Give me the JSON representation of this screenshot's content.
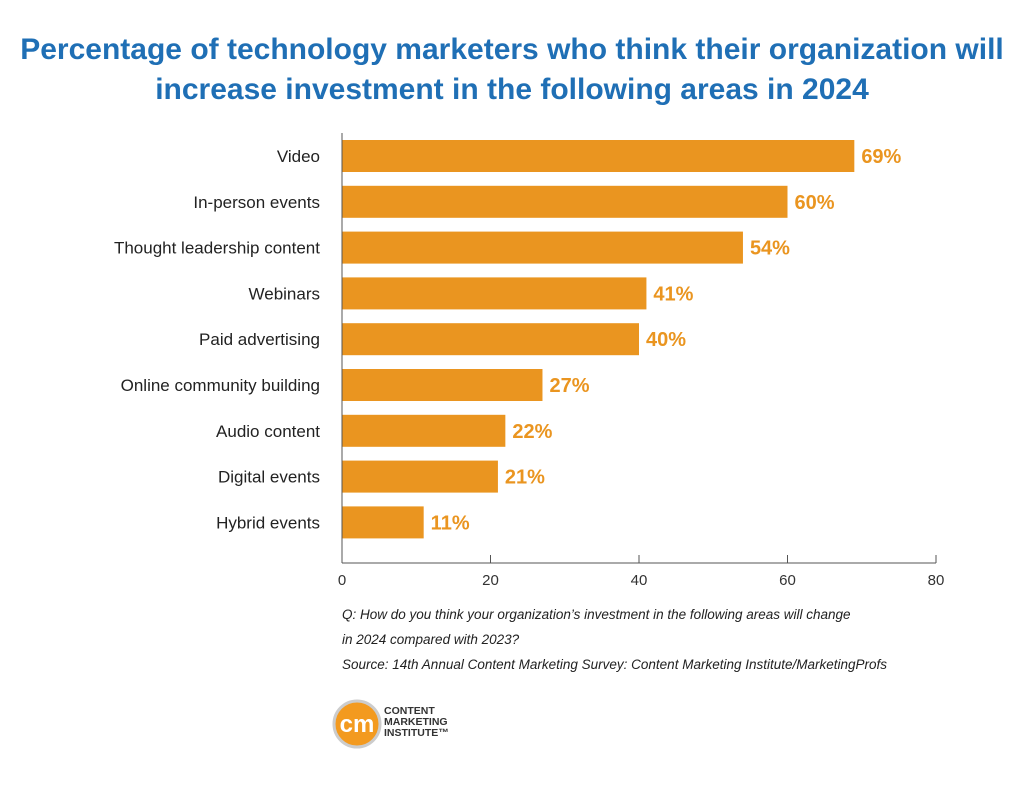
{
  "chart_data": {
    "type": "bar",
    "orientation": "horizontal",
    "title": "Percentage of technology marketers who think their organization will increase investment in the following areas in 2024",
    "categories": [
      "Video",
      "In-person events",
      "Thought leadership content",
      "Webinars",
      "Paid advertising",
      "Online community building",
      "Audio content",
      "Digital events",
      "Hybrid events"
    ],
    "values": [
      69,
      60,
      54,
      41,
      40,
      27,
      22,
      21,
      11
    ],
    "value_labels": [
      "69%",
      "60%",
      "54%",
      "41%",
      "40%",
      "27%",
      "22%",
      "21%",
      "11%"
    ],
    "xlim": [
      0,
      80
    ],
    "xticks": [
      "0",
      "20",
      "40",
      "60",
      "80"
    ],
    "grid": false,
    "bar_color": "#ea9520",
    "label_color": "#ea9520"
  },
  "notes": {
    "question_line1": "Q: How do you think your organization’s investment in the following areas will change",
    "question_line2": "in 2024 compared with 2023?",
    "source": "Source: 14th Annual Content Marketing Survey: Content Marketing Institute/MarketingProfs"
  },
  "logo": {
    "mark": "cm",
    "line1": "CONTENT",
    "line2": "MARKETING",
    "line3": "INSTITUTE™"
  }
}
